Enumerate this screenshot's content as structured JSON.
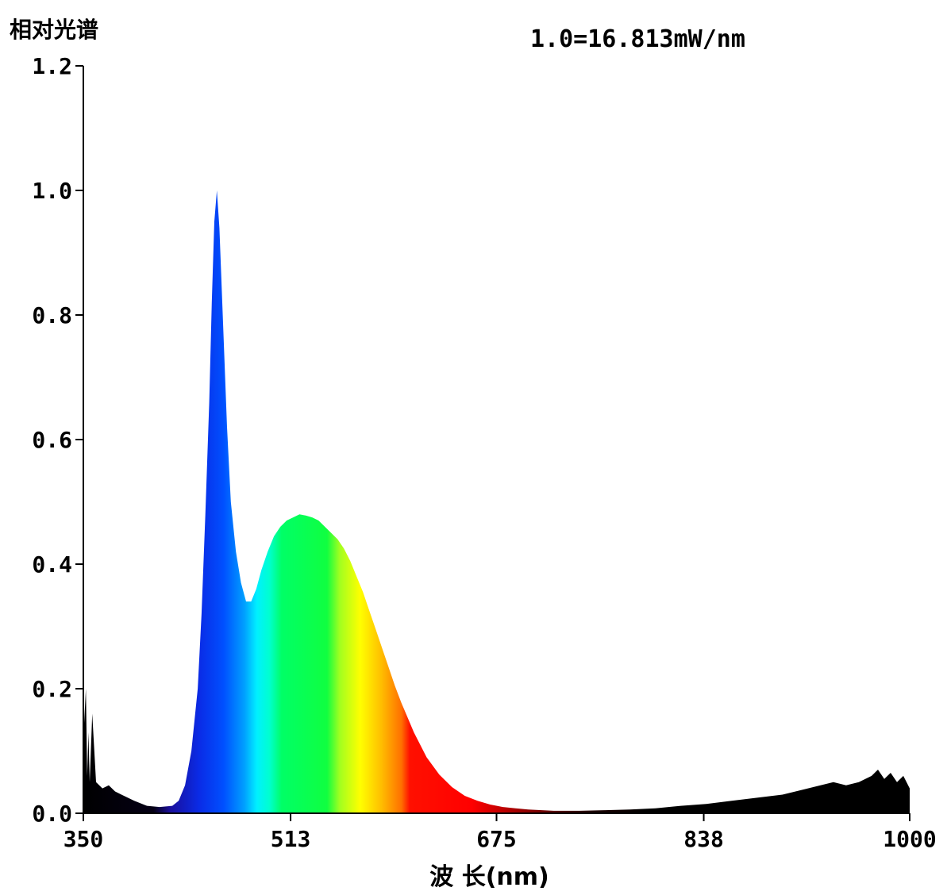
{
  "chart_data": {
    "type": "area",
    "ylabel": "相对光谱",
    "xlabel": "波 长(nm)",
    "scale_note": "1.0=16.813mW/nm",
    "xlim": [
      350,
      1000
    ],
    "ylim": [
      0,
      1.2
    ],
    "x_ticks": [
      "350",
      "513",
      "675",
      "838",
      "1000"
    ],
    "y_ticks": [
      "0.0",
      "0.2",
      "0.4",
      "0.6",
      "0.8",
      "1.0",
      "1.2"
    ],
    "gridlines": false,
    "series": [
      {
        "x": [
          350,
          352,
          353,
          354,
          355,
          357,
          360,
          365,
          370,
          375,
          380,
          390,
          400,
          410,
          420,
          425,
          430,
          435,
          440,
          443,
          446,
          449,
          451,
          453,
          455,
          457,
          460,
          463,
          466,
          470,
          474,
          478,
          482,
          486,
          490,
          495,
          500,
          505,
          510,
          515,
          520,
          525,
          530,
          535,
          540,
          545,
          550,
          555,
          560,
          565,
          570,
          575,
          580,
          585,
          590,
          595,
          600,
          610,
          620,
          630,
          640,
          650,
          660,
          670,
          680,
          690,
          700,
          720,
          740,
          760,
          780,
          800,
          820,
          840,
          860,
          880,
          900,
          920,
          940,
          950,
          960,
          970,
          975,
          980,
          985,
          990,
          995,
          1000
        ],
        "y": [
          0.12,
          0.2,
          0.06,
          0.13,
          0.05,
          0.16,
          0.05,
          0.04,
          0.045,
          0.035,
          0.03,
          0.02,
          0.012,
          0.01,
          0.012,
          0.02,
          0.045,
          0.1,
          0.2,
          0.32,
          0.48,
          0.66,
          0.82,
          0.95,
          1.0,
          0.94,
          0.78,
          0.62,
          0.5,
          0.42,
          0.37,
          0.34,
          0.34,
          0.36,
          0.39,
          0.42,
          0.445,
          0.46,
          0.47,
          0.475,
          0.48,
          0.478,
          0.475,
          0.47,
          0.46,
          0.45,
          0.44,
          0.425,
          0.405,
          0.38,
          0.355,
          0.325,
          0.295,
          0.265,
          0.235,
          0.205,
          0.178,
          0.13,
          0.09,
          0.062,
          0.042,
          0.028,
          0.02,
          0.014,
          0.01,
          0.008,
          0.006,
          0.004,
          0.004,
          0.005,
          0.006,
          0.008,
          0.012,
          0.015,
          0.02,
          0.025,
          0.03,
          0.04,
          0.05,
          0.045,
          0.05,
          0.06,
          0.07,
          0.055,
          0.065,
          0.05,
          0.06,
          0.04
        ]
      }
    ]
  },
  "colors": {
    "axis": "#000000",
    "uv_ir_fill": "#000000"
  }
}
